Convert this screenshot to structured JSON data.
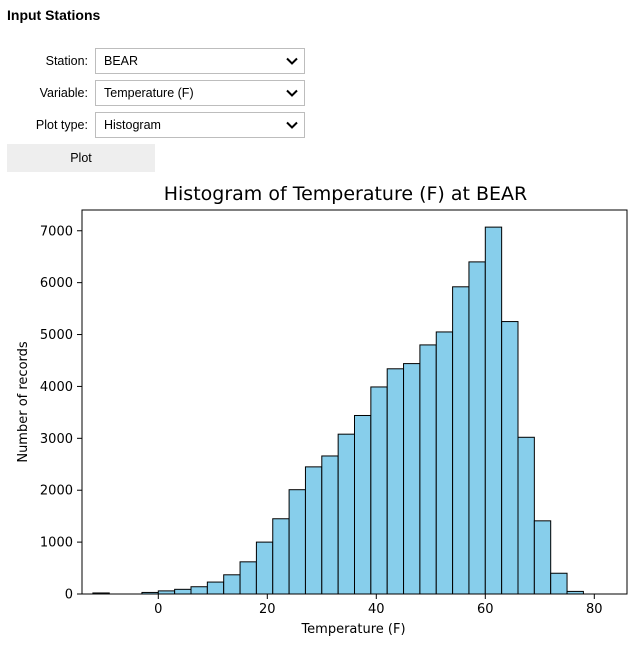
{
  "section_title": "Input Stations",
  "form": {
    "station": {
      "label": "Station:",
      "value": "BEAR"
    },
    "variable": {
      "label": "Variable:",
      "value": "Temperature (F)"
    },
    "plot_type": {
      "label": "Plot type:",
      "value": "Histogram"
    }
  },
  "plot_button": "Plot",
  "chart_data": {
    "type": "bar",
    "title": "Histogram of Temperature (F) at BEAR",
    "xlabel": "Temperature (F)",
    "ylabel": "Number of records",
    "xlim": [
      -14,
      86
    ],
    "ylim": [
      0,
      7400
    ],
    "xticks": [
      0,
      20,
      40,
      60,
      80
    ],
    "yticks": [
      0,
      1000,
      2000,
      3000,
      4000,
      5000,
      6000,
      7000
    ],
    "bin_start": -12,
    "bin_width": 3,
    "values": [
      20,
      0,
      0,
      30,
      60,
      90,
      140,
      230,
      370,
      620,
      1000,
      1450,
      2010,
      2450,
      2660,
      3080,
      3440,
      3990,
      4340,
      4440,
      4800,
      5050,
      5920,
      6400,
      7070,
      5250,
      3020,
      1410,
      400,
      50
    ],
    "bar_color": "#87ceeb",
    "edge_color": "#000000",
    "grid": false
  }
}
